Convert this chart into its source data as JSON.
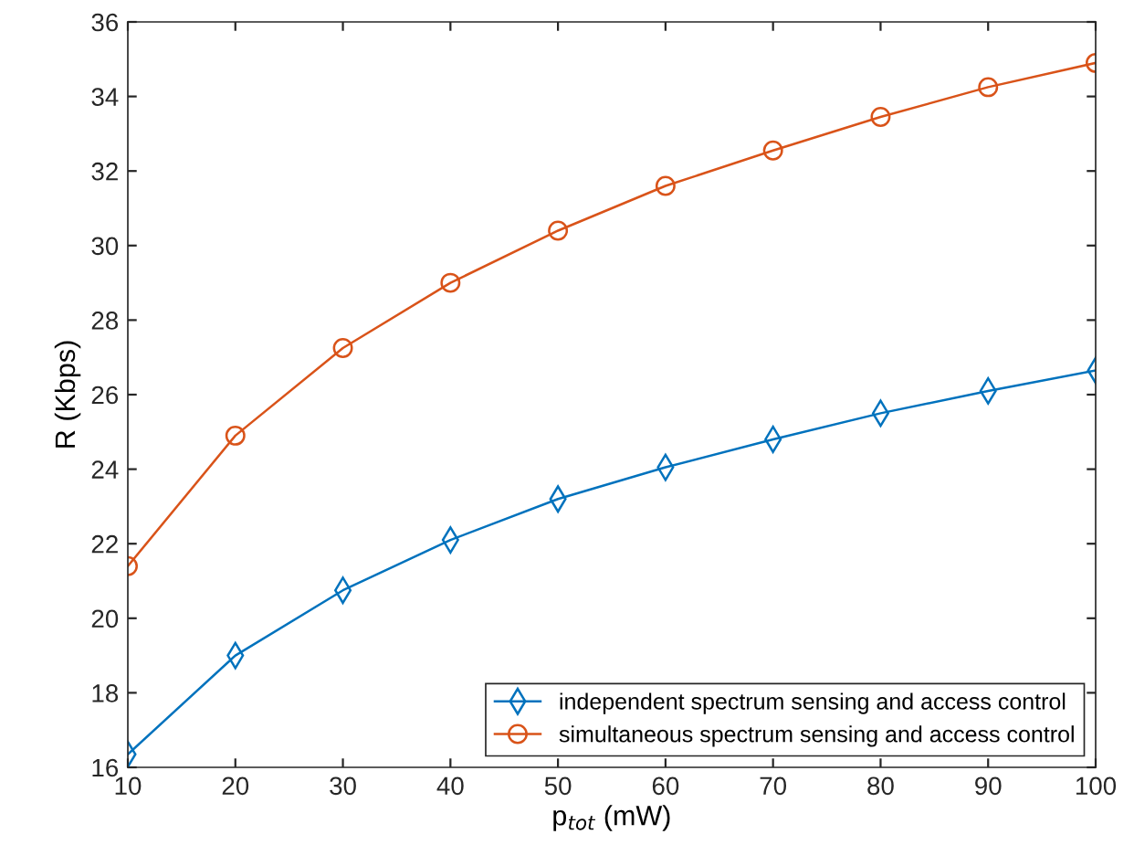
{
  "chart_data": {
    "type": "line",
    "xlabel": "p$_{tot}$ (mW)",
    "ylabel": "R (Kbps)",
    "x": [
      10,
      20,
      30,
      40,
      50,
      60,
      70,
      80,
      90,
      100
    ],
    "series": [
      {
        "name": "independent spectrum sensing and access control",
        "color": "#0072bd",
        "marker": "diamond",
        "values": [
          16.35,
          19.0,
          20.75,
          22.1,
          23.2,
          24.05,
          24.8,
          25.5,
          26.1,
          26.65
        ]
      },
      {
        "name": "simultaneous spectrum sensing and access control",
        "color": "#d95319",
        "marker": "circle",
        "values": [
          21.4,
          24.9,
          27.25,
          29.0,
          30.4,
          31.6,
          32.55,
          33.45,
          34.25,
          34.9
        ]
      }
    ],
    "xlim": [
      10,
      100
    ],
    "xticks": [
      10,
      20,
      30,
      40,
      50,
      60,
      70,
      80,
      90,
      100
    ],
    "ylim": [
      16,
      36
    ],
    "yticks": [
      16,
      18,
      20,
      22,
      24,
      26,
      28,
      30,
      32,
      34,
      36
    ],
    "grid": false,
    "legend": "bottom right",
    "line_style": "solid"
  }
}
